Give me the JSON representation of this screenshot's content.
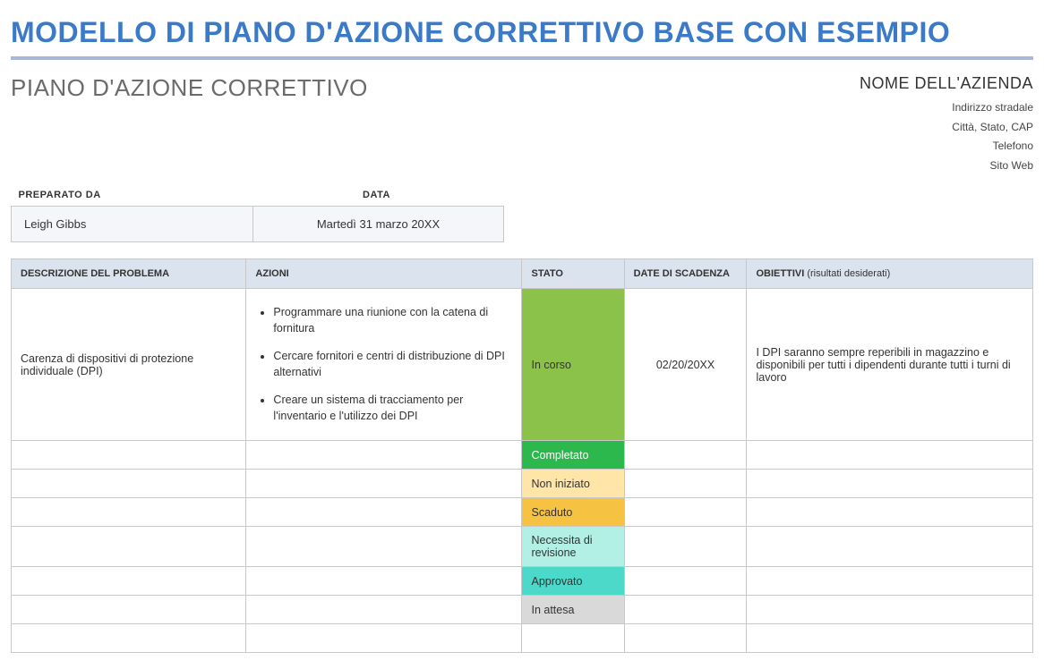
{
  "main_title": "MODELLO DI PIANO D'AZIONE CORRETTIVO BASE CON ESEMPIO",
  "subtitle": "PIANO D'AZIONE CORRETTIVO",
  "company": {
    "name": "NOME DELL'AZIENDA",
    "address": "Indirizzo stradale",
    "city": "Città, Stato, CAP",
    "phone": "Telefono",
    "web": "Sito Web"
  },
  "prep": {
    "header_prepared": "PREPARATO DA",
    "header_date": "DATA",
    "prepared_by": "Leigh Gibbs",
    "date": "Martedì 31 marzo 20XX"
  },
  "columns": {
    "desc": "DESCRIZIONE DEL PROBLEMA",
    "actions": "AZIONI",
    "status": "STATO",
    "due": "DATE DI SCADENZA",
    "obj": "OBIETTIVI",
    "obj_sub": "(risultati desiderati)"
  },
  "status_colors": {
    "in_corso": "#8bc34a",
    "completato": "#2db84d",
    "non_iniziato": "#ffe6a8",
    "scaduto": "#f5c242",
    "necessita": "#b2f0e6",
    "approvato": "#4dd9c9",
    "in_attesa": "#d9d9d9"
  },
  "rows": {
    "r0": {
      "desc": "Carenza di dispositivi di protezione individuale (DPI)",
      "a1": "Programmare una riunione con la catena di fornitura",
      "a2": "Cercare fornitori e centri di distribuzione di DPI alternativi",
      "a3": "Creare un sistema di tracciamento per l'inventario e l'utilizzo dei DPI",
      "status": "In corso",
      "due": "02/20/20XX",
      "obj": "I DPI saranno sempre reperibili in magazzino e disponibili per tutti i dipendenti durante tutti i turni di lavoro"
    },
    "r1": {
      "status": "Completato"
    },
    "r2": {
      "status": "Non iniziato"
    },
    "r3": {
      "status": "Scaduto"
    },
    "r4": {
      "status": "Necessita di revisione"
    },
    "r5": {
      "status": "Approvato"
    },
    "r6": {
      "status": "In attesa"
    }
  }
}
